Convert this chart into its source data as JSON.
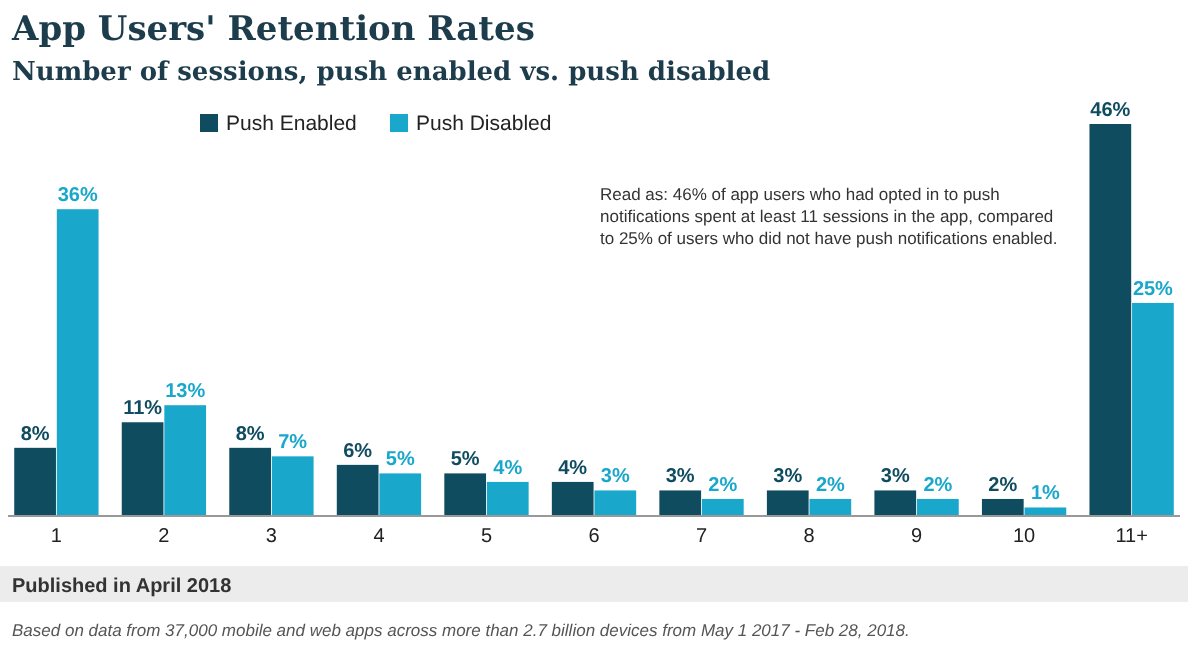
{
  "chart_data": {
    "type": "bar",
    "title": "App Users' Retention Rates",
    "subtitle": "Number of sessions, push enabled vs. push disabled",
    "categories": [
      "1",
      "2",
      "3",
      "4",
      "5",
      "6",
      "7",
      "8",
      "9",
      "10",
      "11+"
    ],
    "series": [
      {
        "name": "Push Enabled",
        "color": "#0f4c60",
        "values": [
          8,
          11,
          8,
          6,
          5,
          4,
          3,
          3,
          3,
          2,
          46
        ],
        "value_labels": [
          "8%",
          "11%",
          "8%",
          "6%",
          "5%",
          "4%",
          "3%",
          "3%",
          "3%",
          "2%",
          "46%"
        ]
      },
      {
        "name": "Push Disabled",
        "color": "#1aa7cc",
        "values": [
          36,
          13,
          7,
          5,
          4,
          3,
          2,
          2,
          2,
          1,
          25
        ],
        "value_labels": [
          "36%",
          "13%",
          "7%",
          "5%",
          "4%",
          "3%",
          "2%",
          "2%",
          "2%",
          "1%",
          "25%"
        ]
      }
    ],
    "ylim": [
      0,
      46
    ],
    "legend": "top left",
    "annotations": [
      "Read as: 46% of app users who had opted in to push notifications spent at least 11 sessions in the app, compared to 25% of users who did not have push notifications enabled.",
      "Published in April 2018",
      "Based on data from 37,000 mobile and web apps across more than 2.7 billion devices from May 1 2017 - Feb 28, 2018."
    ]
  }
}
